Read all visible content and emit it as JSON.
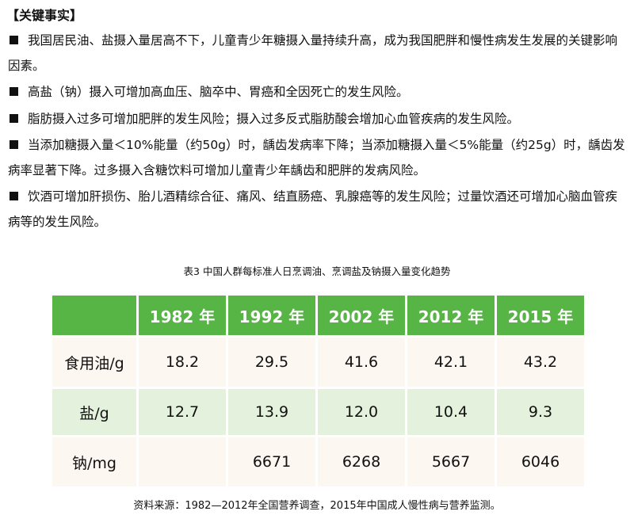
{
  "title": "【关键事实】",
  "facts": [
    "我国居民油、盐摄入量居高不下，儿童青少年糖摄入量持续升高，成为我国肥胖和慢性病发生发展的关键影响因素。",
    "高盐（钠）摄入可增加高血压、脑卒中、胃癌和全因死亡的发生风险。",
    "脂肪摄入过多可增加肥胖的发生风险；摄入过多反式脂肪酸会增加心血管疾病的发生风险。",
    "当添加糖摄入量＜10%能量（约50g）时，龋齿发病率下降；当添加糖摄入量＜5%能量（约25g）时，龋齿发病率显著下降。过多摄入含糖饮料可增加儿童青少年龋齿和肥胖的发病风险。",
    "饮酒可增加肝损伤、胎儿酒精综合征、痛风、结直肠癌、乳腺癌等的发生风险；过量饮酒还可增加心脑血管疾病等的发生风险。"
  ],
  "table": {
    "caption": "表3  中国人群每标准人日烹调油、烹调盐及钠摄入量变化趋势",
    "headers": [
      "",
      "1982 年",
      "1992 年",
      "2002 年",
      "2012 年",
      "2015 年"
    ],
    "rows": [
      [
        "食用油/g",
        "18.2",
        "29.5",
        "41.6",
        "42.1",
        "43.2"
      ],
      [
        "盐/g",
        "12.7",
        "13.9",
        "12.0",
        "10.4",
        "9.3"
      ],
      [
        "钠/mg",
        "",
        "6671",
        "6268",
        "5667",
        "6046"
      ]
    ],
    "source": "资料来源：1982—2012年全国营养调查，2015年中国成人慢性病与营养监测。"
  },
  "colors": {
    "header": "#57b546",
    "row_light": "#fdf7f2",
    "row_green": "#e4f1dc"
  }
}
